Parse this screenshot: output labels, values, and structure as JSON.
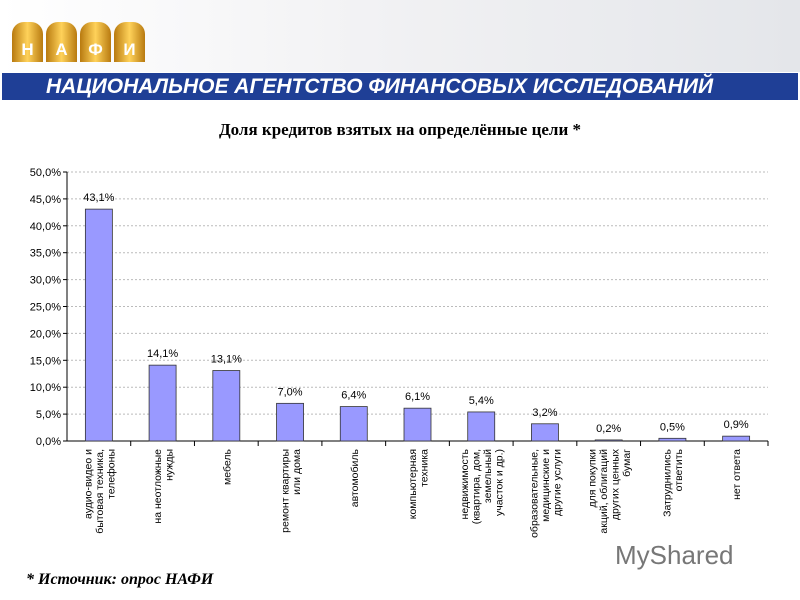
{
  "header": {
    "logo_letters": [
      "Н",
      "А",
      "Ф",
      "И"
    ],
    "banner": "НАЦИОНАЛЬНОЕ АГЕНТСТВО ФИНАНСОВЫХ ИССЛЕДОВАНИЙ"
  },
  "chart_data": {
    "type": "bar",
    "title": "Доля кредитов взятых на определённые цели *",
    "categories": [
      "аудио-видео и\nбытовая техника,\nтелефоны",
      "на неотложные\nнужды",
      "мебель",
      "ремонт квартиры\nили дома",
      "автомобиль",
      "компьютерная\nтехника",
      "недвижимость\n(квартира, дом,\nземельный\nучасток и др.)",
      "образовательные,\nмедицинские и\nдругие услуги",
      "для покупки\nакций, облигаций\nдругих ценных\nбумаг",
      "Затруднились\nответить",
      "нет ответа"
    ],
    "values": [
      43.1,
      14.1,
      13.1,
      7.0,
      6.4,
      6.1,
      5.4,
      3.2,
      0.2,
      0.5,
      0.9
    ],
    "data_labels": [
      "43,1%",
      "14,1%",
      "13,1%",
      "7,0%",
      "6,4%",
      "6,1%",
      "5,4%",
      "3,2%",
      "0,2%",
      "0,5%",
      "0,9%"
    ],
    "yticks": [
      "0,0%",
      "5,0%",
      "10,0%",
      "15,0%",
      "20,0%",
      "25,0%",
      "30,0%",
      "35,0%",
      "40,0%",
      "45,0%",
      "50,0%"
    ],
    "ylim": [
      0,
      50
    ],
    "grid": true,
    "bar_color": "#9999ff"
  },
  "footer": {
    "source": "* Источник: опрос НАФИ",
    "watermark": "MyShared"
  }
}
